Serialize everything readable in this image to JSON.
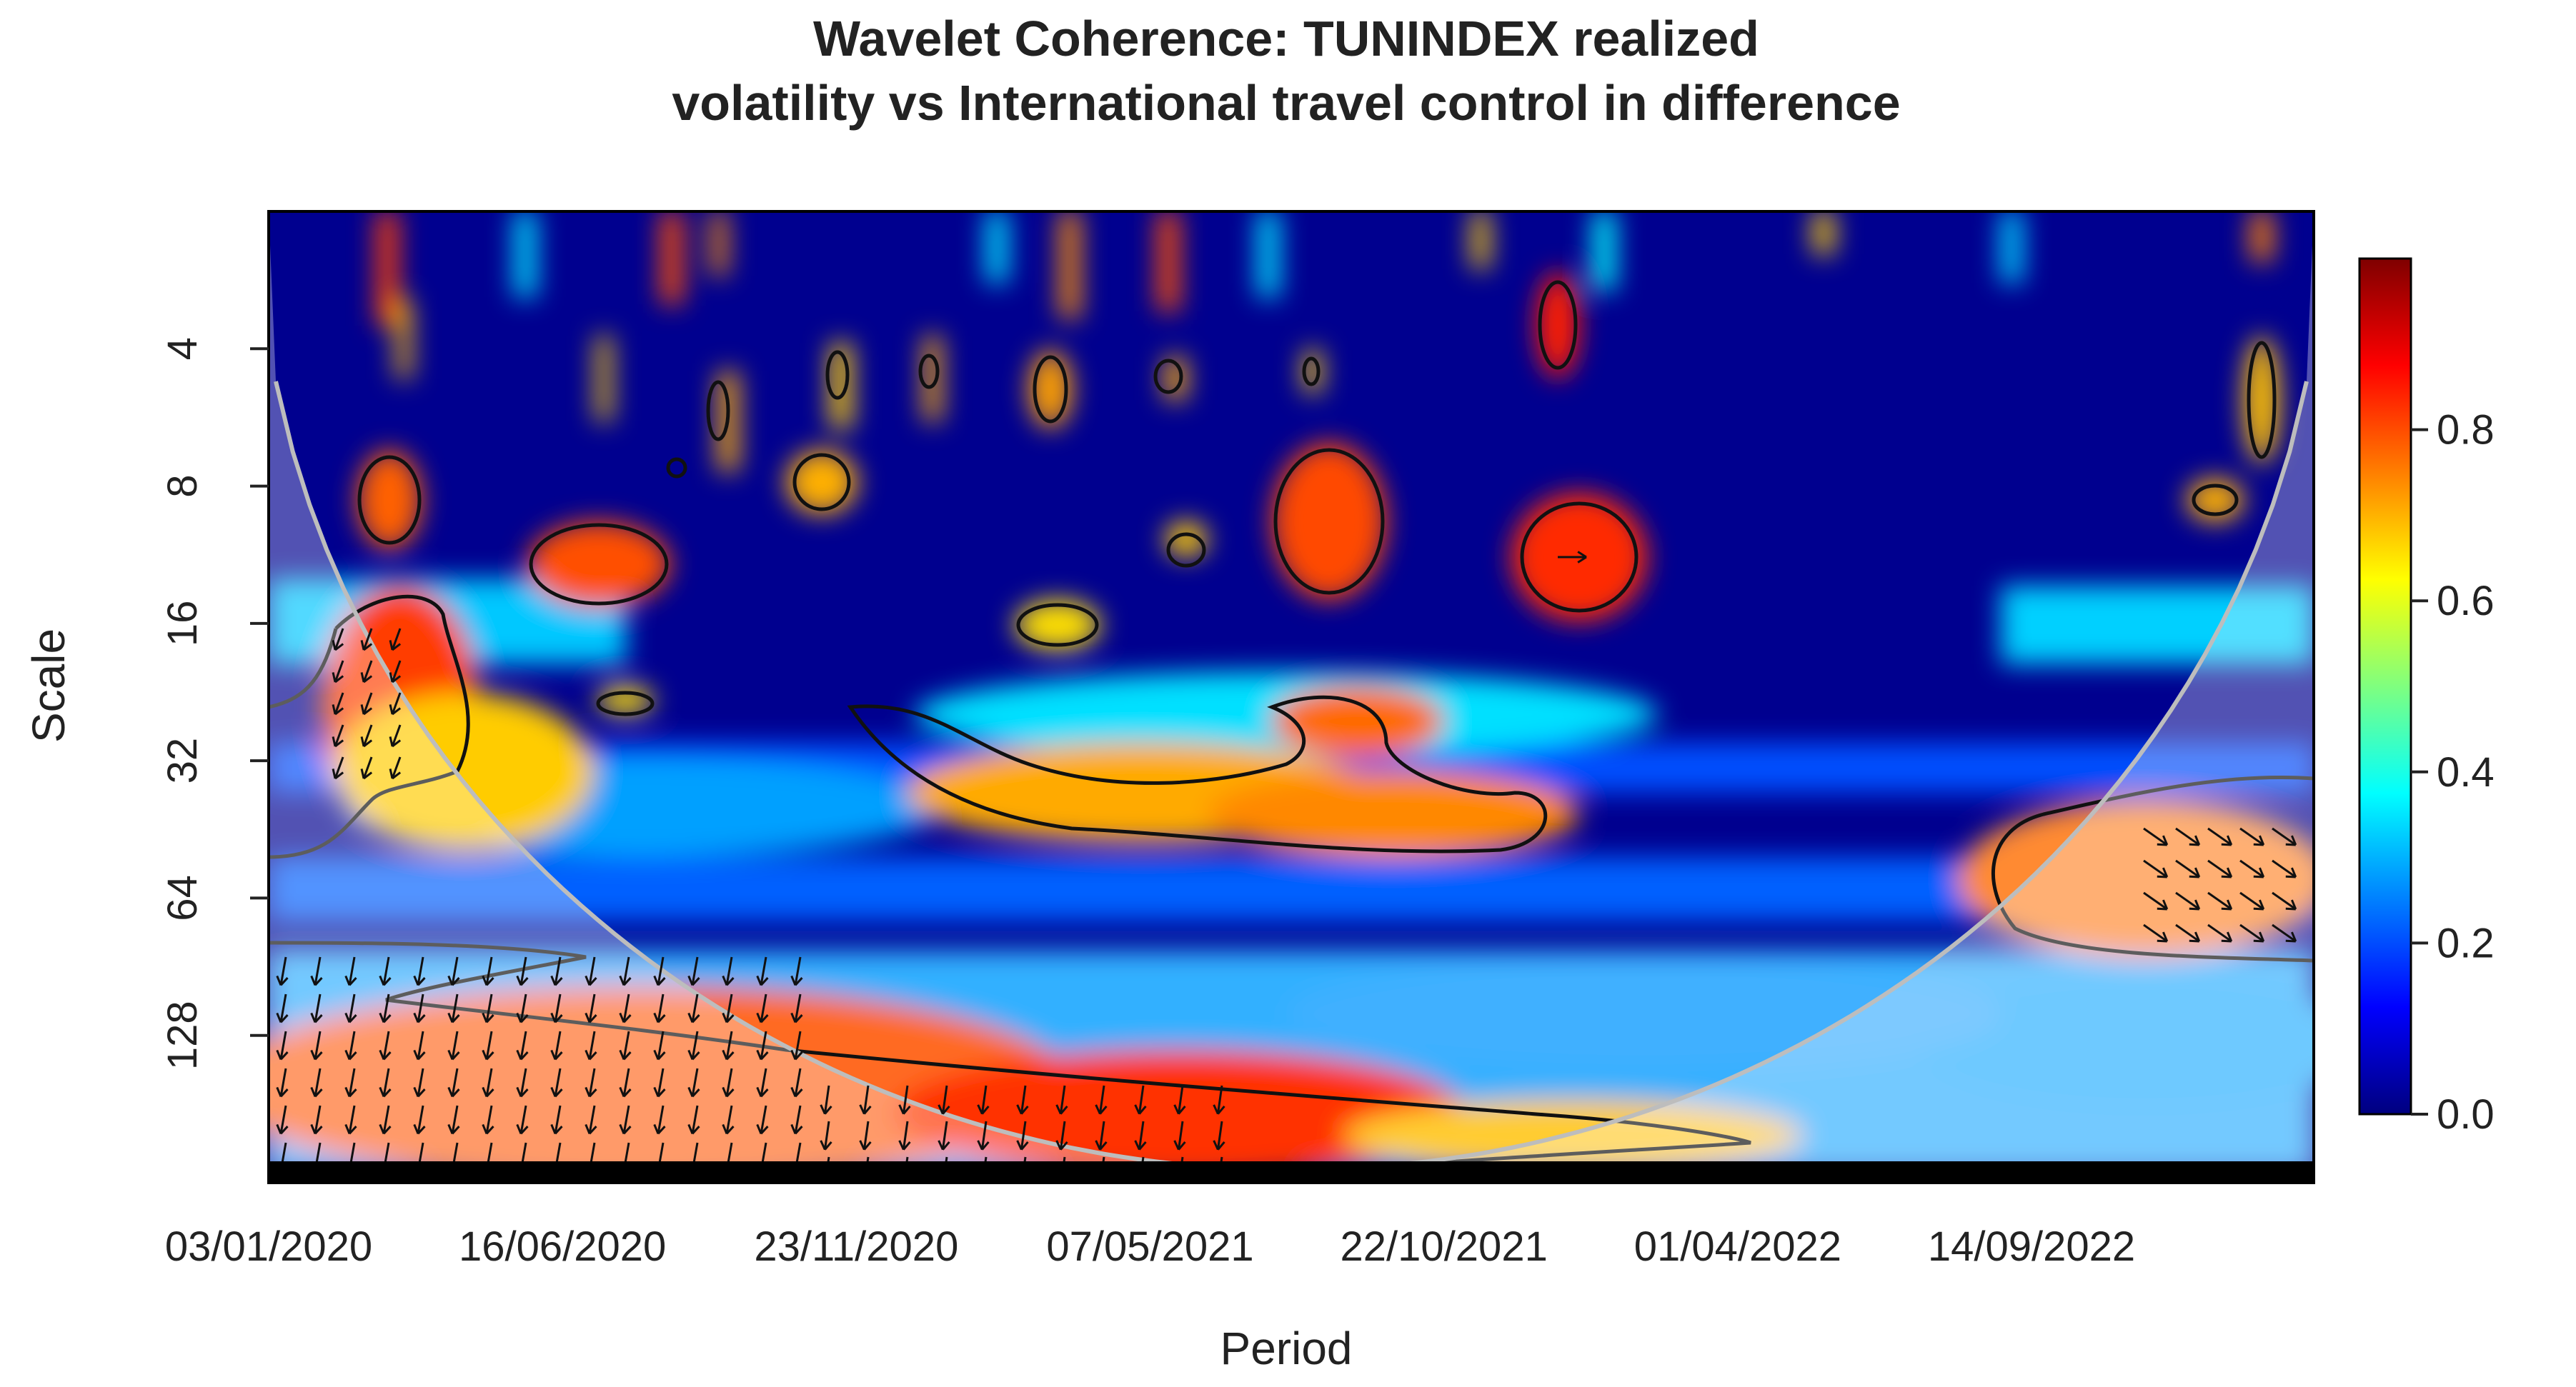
{
  "chart_data": {
    "type": "heatmap",
    "title_lines": [
      "Wavelet Coherence: TUNINDEX realized",
      "volatility vs International travel control in difference"
    ],
    "xlabel": "Period",
    "ylabel": "Scale",
    "x_ticks": [
      "03/01/2020",
      "16/06/2020",
      "23/11/2020",
      "07/05/2021",
      "22/10/2021",
      "01/04/2022",
      "14/09/2022"
    ],
    "y_ticks": [
      "4",
      "8",
      "16",
      "32",
      "64",
      "128"
    ],
    "y_scale": "log2",
    "ylim": [
      2,
      256
    ],
    "colorbar": {
      "ticks": [
        "0.0",
        "0.2",
        "0.4",
        "0.6",
        "0.8"
      ],
      "range": [
        0,
        1
      ],
      "colors": [
        "#00007f",
        "#0000ff",
        "#007fff",
        "#00ffff",
        "#7fff7f",
        "#ffff00",
        "#ff7f00",
        "#ff0000",
        "#7f0000"
      ]
    },
    "cone_of_influence": true,
    "colors": {
      "cone": "#bbbbbb",
      "contour": "#111111",
      "shade": "#c8a0a0"
    }
  }
}
